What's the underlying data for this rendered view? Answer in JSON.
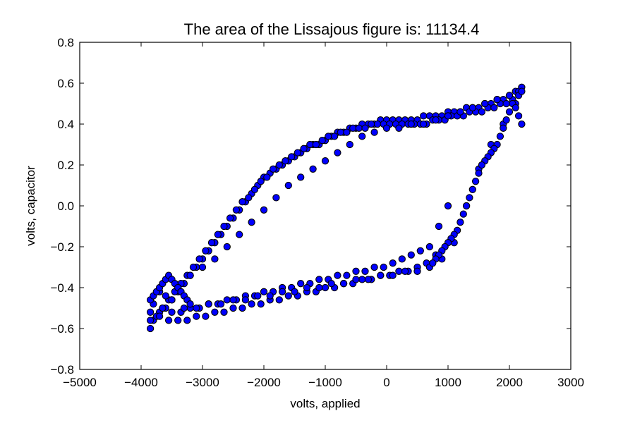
{
  "chart_data": {
    "type": "scatter",
    "title": "The area of the Lissajous figure is: 11134.4",
    "xlabel": "volts, applied",
    "ylabel": "volts, capacitor",
    "xlim": [
      -5000,
      3000
    ],
    "ylim": [
      -0.8,
      0.8
    ],
    "xticks": [
      -5000,
      -4000,
      -3000,
      -2000,
      -1000,
      0,
      1000,
      2000,
      3000
    ],
    "xtick_labels": [
      "−5000",
      "−4000",
      "−3000",
      "−2000",
      "−1000",
      "0",
      "1000",
      "2000",
      "3000"
    ],
    "yticks": [
      -0.8,
      -0.6,
      -0.4,
      -0.2,
      0.0,
      0.2,
      0.4,
      0.6,
      0.8
    ],
    "ytick_labels": [
      "−0.8",
      "−0.6",
      "−0.4",
      "−0.2",
      "0.0",
      "0.2",
      "0.4",
      "0.6",
      "0.8"
    ],
    "grid": false,
    "marker_color": "#0000ff",
    "marker_edge_color": "#000000",
    "series": [
      {
        "x": [
          -3850,
          -3800,
          -3700,
          -3600,
          -3500,
          -3400,
          -3300,
          -3200,
          -3100,
          -3000,
          -2900,
          -2800,
          -2700,
          -2600,
          -2500,
          -2400,
          -2300,
          -2200,
          -2100,
          -2000,
          -1900,
          -1800,
          -1700,
          -1600,
          -1500,
          -1400,
          -1300,
          -1200,
          -1100,
          -1000,
          -900,
          -800,
          -700,
          -600,
          -500,
          -400,
          -300,
          -200,
          -100,
          0,
          100,
          200,
          300,
          400,
          500,
          600,
          700,
          800,
          900,
          1000,
          1100,
          1200,
          1300,
          1400,
          1500,
          1600,
          1700,
          1800,
          1900,
          2000,
          2100,
          2150,
          2200,
          -3850,
          -3750,
          -3650,
          -3550,
          -3450,
          -3350,
          -3250,
          -3150,
          -3050,
          -2950,
          -2850,
          -2750,
          -2650,
          -2550,
          -2450,
          -2350,
          -2250,
          -2150,
          -2050,
          -1950,
          -1850,
          -1750,
          -1650,
          -1550,
          -1450,
          -1350,
          -1250,
          -1150,
          -1050,
          -950,
          -850,
          -750,
          -650,
          -550,
          -450,
          -350,
          -250,
          -150,
          -50,
          50,
          150,
          250,
          350,
          450,
          550,
          650,
          750,
          850,
          950,
          1050,
          1150,
          1250,
          1350,
          1450,
          1550,
          1650,
          1750,
          1850,
          1950,
          2050,
          2150,
          -3850,
          -3700,
          -3550,
          -3400,
          -3250,
          -3100,
          -2950,
          -2800,
          -2650,
          -2500,
          -2350,
          -2200,
          -2050,
          -1900,
          -1750,
          -1600,
          -1450,
          -1300,
          -1150,
          -1000,
          -850,
          -700,
          -550,
          -400,
          -250,
          -100,
          50,
          200,
          350,
          500,
          650,
          800,
          -3800,
          -3650,
          -3500,
          -3350,
          -3200,
          -3050,
          -2900,
          -2750,
          -2600,
          -2450,
          -2300,
          -2150,
          -2000,
          -1850,
          -1700,
          -1550,
          -1400,
          -1250,
          -1100,
          -950,
          -800,
          -650,
          -500,
          -350,
          -200,
          -50,
          100,
          250,
          400,
          550,
          700,
          850,
          1000,
          -3600,
          -3400,
          -3200,
          -3000,
          -2800,
          -2600,
          -2400,
          -2200,
          -2000,
          -1800,
          -1600,
          -1400,
          -1200,
          -1000,
          -800,
          -600,
          -400,
          -200,
          0,
          200,
          400,
          600,
          800,
          1000,
          1200,
          1400,
          1600,
          1800,
          2000,
          2200,
          -3700,
          -3500,
          -3300,
          -3100,
          -2900,
          -2700,
          -2500,
          -2300,
          -2100,
          -1900,
          -1700,
          -1500,
          -1300,
          -1100,
          -900,
          -700,
          -500,
          -300,
          -100,
          100,
          300,
          500,
          700,
          900,
          1100,
          1300,
          1500,
          1700,
          1900,
          2100,
          1800,
          1850,
          1900,
          1950,
          2000,
          2050,
          2100,
          2150,
          2200,
          1750,
          1700,
          1650,
          1600,
          1550,
          1500,
          1450,
          1400,
          1350,
          1300,
          1250,
          1200,
          1150,
          1100,
          1050,
          1000,
          950,
          900,
          850,
          800,
          750,
          -3850,
          -3800,
          -3750,
          -3700,
          -3650,
          -3600,
          -3550,
          -3500,
          -3450,
          -3400,
          -3350,
          -3300,
          -3250,
          -3200
        ],
        "y": [
          -0.6,
          -0.56,
          -0.52,
          -0.5,
          -0.46,
          -0.42,
          -0.38,
          -0.34,
          -0.3,
          -0.26,
          -0.22,
          -0.18,
          -0.14,
          -0.1,
          -0.06,
          -0.02,
          0.02,
          0.06,
          0.1,
          0.14,
          0.16,
          0.18,
          0.2,
          0.22,
          0.24,
          0.26,
          0.28,
          0.3,
          0.3,
          0.32,
          0.34,
          0.36,
          0.36,
          0.38,
          0.38,
          0.4,
          0.4,
          0.4,
          0.42,
          0.42,
          0.42,
          0.42,
          0.42,
          0.42,
          0.42,
          0.44,
          0.44,
          0.44,
          0.44,
          0.46,
          0.46,
          0.46,
          0.48,
          0.48,
          0.48,
          0.5,
          0.5,
          0.52,
          0.52,
          0.54,
          0.56,
          0.56,
          0.58,
          -0.56,
          -0.54,
          -0.5,
          -0.46,
          -0.42,
          -0.38,
          -0.34,
          -0.3,
          -0.26,
          -0.22,
          -0.18,
          -0.14,
          -0.1,
          -0.06,
          -0.02,
          0.02,
          0.04,
          0.08,
          0.12,
          0.14,
          0.18,
          0.2,
          0.22,
          0.24,
          0.26,
          0.28,
          0.3,
          0.3,
          0.32,
          0.34,
          0.34,
          0.36,
          0.36,
          0.38,
          0.38,
          0.38,
          0.4,
          0.4,
          0.4,
          0.4,
          0.4,
          0.4,
          0.4,
          0.4,
          0.4,
          0.4,
          0.42,
          0.42,
          0.42,
          0.44,
          0.44,
          0.44,
          0.46,
          0.46,
          0.46,
          0.48,
          0.48,
          0.5,
          0.5,
          0.52,
          0.54,
          -0.52,
          -0.54,
          -0.56,
          -0.56,
          -0.56,
          -0.54,
          -0.54,
          -0.52,
          -0.52,
          -0.5,
          -0.5,
          -0.48,
          -0.48,
          -0.46,
          -0.46,
          -0.44,
          -0.44,
          -0.42,
          -0.42,
          -0.4,
          -0.4,
          -0.38,
          -0.38,
          -0.36,
          -0.36,
          -0.34,
          -0.34,
          -0.32,
          -0.32,
          -0.3,
          -0.28,
          -0.24,
          -0.48,
          -0.5,
          -0.52,
          -0.52,
          -0.5,
          -0.5,
          -0.48,
          -0.48,
          -0.46,
          -0.46,
          -0.44,
          -0.44,
          -0.42,
          -0.42,
          -0.4,
          -0.4,
          -0.38,
          -0.38,
          -0.36,
          -0.36,
          -0.34,
          -0.34,
          -0.32,
          -0.32,
          -0.3,
          -0.3,
          -0.28,
          -0.26,
          -0.24,
          -0.22,
          -0.2,
          -0.1,
          0.0,
          -0.44,
          -0.4,
          -0.34,
          -0.3,
          -0.26,
          -0.2,
          -0.14,
          -0.08,
          -0.02,
          0.04,
          0.1,
          0.14,
          0.18,
          0.22,
          0.26,
          0.3,
          0.34,
          0.36,
          0.38,
          0.38,
          0.4,
          0.4,
          0.42,
          0.44,
          0.46,
          0.48,
          0.5,
          0.52,
          0.54,
          0.56,
          -0.42,
          -0.46,
          -0.5,
          -0.5,
          -0.48,
          -0.48,
          -0.46,
          -0.46,
          -0.44,
          -0.44,
          -0.42,
          -0.42,
          -0.4,
          -0.4,
          -0.38,
          -0.38,
          -0.36,
          -0.36,
          -0.34,
          -0.34,
          -0.32,
          -0.32,
          -0.3,
          -0.26,
          -0.18,
          0.0,
          0.18,
          0.3,
          0.4,
          0.5,
          0.3,
          0.34,
          0.38,
          0.42,
          0.46,
          0.5,
          0.48,
          0.44,
          0.4,
          0.28,
          0.26,
          0.24,
          0.22,
          0.2,
          0.16,
          0.12,
          0.08,
          0.04,
          0.0,
          -0.04,
          -0.08,
          -0.12,
          -0.14,
          -0.16,
          -0.18,
          -0.2,
          -0.22,
          -0.24,
          -0.26,
          -0.28,
          -0.46,
          -0.44,
          -0.42,
          -0.4,
          -0.38,
          -0.36,
          -0.34,
          -0.36,
          -0.38,
          -0.4,
          -0.42,
          -0.44,
          -0.46,
          -0.48
        ]
      }
    ]
  }
}
